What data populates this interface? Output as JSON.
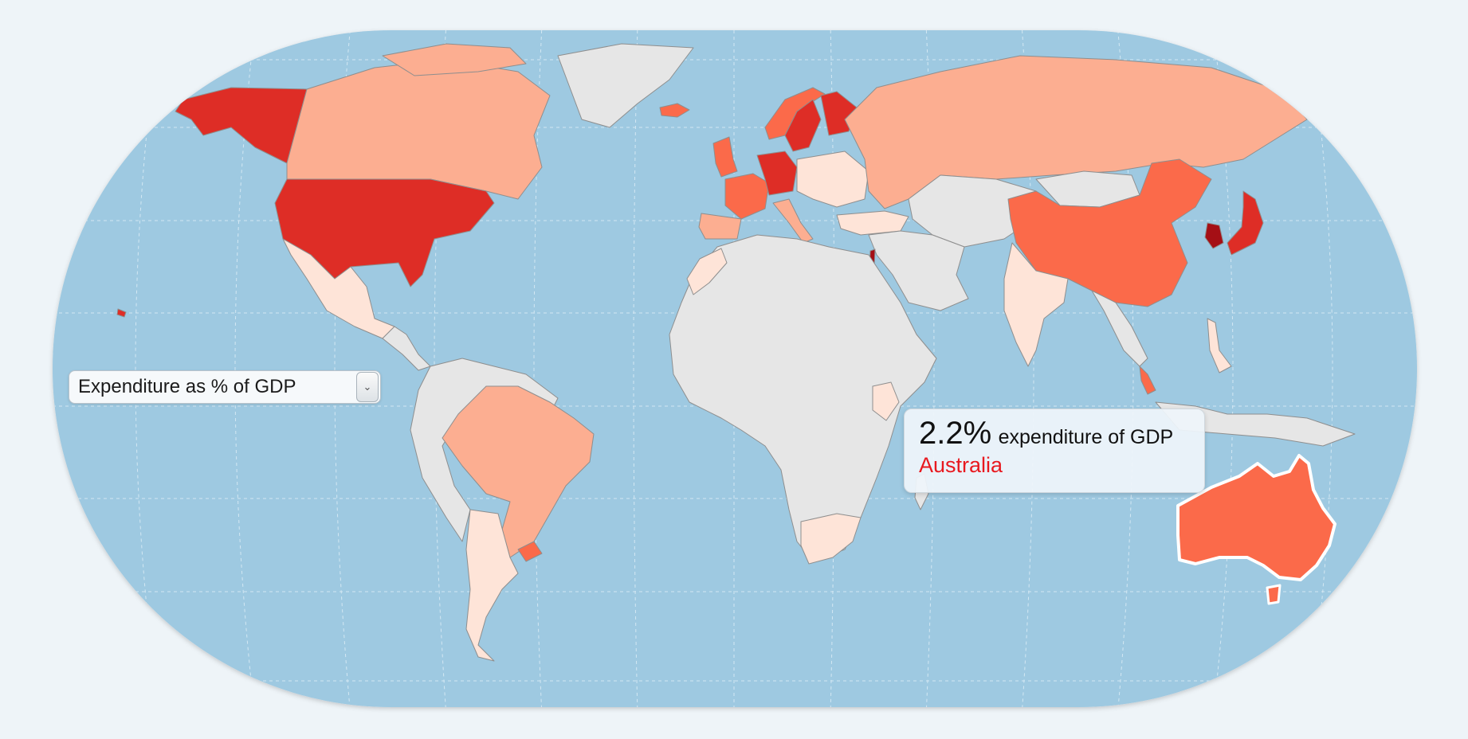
{
  "map": {
    "projection": "robinson-style world map",
    "ocean_color": "#9ec9e1",
    "no_data_color": "#e6e6e6",
    "border_color": "#8e8e8e",
    "highlight_outline": "#ffffff",
    "color_scale": [
      "#fee4d8",
      "#fcae91",
      "#fb6a4a",
      "#de2d26",
      "#a50f15"
    ],
    "countries": [
      {
        "name": "Alaska (USA)",
        "shade": "#de2d26"
      },
      {
        "name": "Canada",
        "shade": "#fcae91"
      },
      {
        "name": "United States",
        "shade": "#de2d26"
      },
      {
        "name": "Mexico",
        "shade": "#fee4d8"
      },
      {
        "name": "Brazil",
        "shade": "#fcae91"
      },
      {
        "name": "Argentina",
        "shade": "#fee4d8"
      },
      {
        "name": "Uruguay",
        "shade": "#fb6a4a"
      },
      {
        "name": "Greenland",
        "shade": "#e6e6e6"
      },
      {
        "name": "Iceland",
        "shade": "#fb6a4a"
      },
      {
        "name": "United Kingdom",
        "shade": "#fb6a4a"
      },
      {
        "name": "France",
        "shade": "#fb6a4a"
      },
      {
        "name": "Spain",
        "shade": "#fcae91"
      },
      {
        "name": "Germany",
        "shade": "#de2d26"
      },
      {
        "name": "Sweden",
        "shade": "#de2d26"
      },
      {
        "name": "Finland",
        "shade": "#de2d26"
      },
      {
        "name": "Norway",
        "shade": "#fb6a4a"
      },
      {
        "name": "Italy",
        "shade": "#fcae91"
      },
      {
        "name": "Turkey",
        "shade": "#fee4d8"
      },
      {
        "name": "Russia",
        "shade": "#fcae91"
      },
      {
        "name": "China",
        "shade": "#fb6a4a"
      },
      {
        "name": "South Korea",
        "shade": "#a50f15"
      },
      {
        "name": "Japan",
        "shade": "#de2d26"
      },
      {
        "name": "India",
        "shade": "#fee4d8"
      },
      {
        "name": "Israel",
        "shade": "#a50f15"
      },
      {
        "name": "South Africa",
        "shade": "#fee4d8"
      },
      {
        "name": "Kenya",
        "shade": "#fee4d8"
      },
      {
        "name": "Morocco",
        "shade": "#fee4d8"
      },
      {
        "name": "Australia",
        "shade": "#fb6a4a",
        "highlighted": true
      },
      {
        "name": "Malaysia",
        "shade": "#fb6a4a"
      },
      {
        "name": "Philippines",
        "shade": "#fee4d8"
      }
    ]
  },
  "dropdown": {
    "selected": "Expenditure as % of GDP",
    "icon": "chevron-down-icon"
  },
  "tooltip": {
    "value": "2.2%",
    "unit": "expenditure of GDP",
    "country": "Australia"
  }
}
